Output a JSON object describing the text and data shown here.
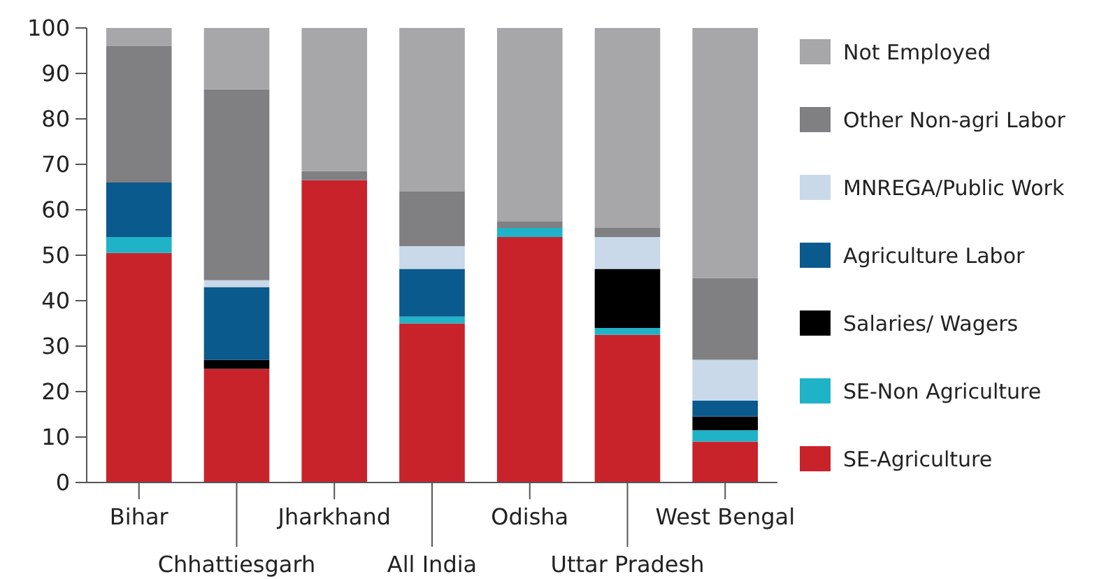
{
  "chart_data": {
    "type": "bar",
    "stacked": true,
    "categories": [
      "Bihar",
      "Chhattiesgarh",
      "Jharkhand",
      "All India",
      "Odisha",
      "Uttar Pradesh",
      "West Bengal"
    ],
    "series": [
      {
        "name": "SE-Agriculture",
        "color": "#c8232b",
        "values": [
          50.5,
          25,
          66.5,
          35,
          54,
          32.5,
          9
        ]
      },
      {
        "name": "SE-Non Agriculture",
        "color": "#1fb3c8",
        "values": [
          3.5,
          0,
          0,
          1.5,
          2,
          1.5,
          2.5
        ]
      },
      {
        "name": "Salaries/ Wagers",
        "color": "#000000",
        "values": [
          0,
          2,
          0,
          0,
          0,
          13,
          3
        ]
      },
      {
        "name": "Agriculture Labor",
        "color": "#0b5a8e",
        "values": [
          12,
          16,
          0,
          10.5,
          0,
          0,
          3.5
        ]
      },
      {
        "name": "MNREGA/Public Work",
        "color": "#c9d9ea",
        "values": [
          0,
          1.5,
          0,
          5,
          0,
          7,
          9
        ]
      },
      {
        "name": "Other Non-agri Labor",
        "color": "#808083",
        "values": [
          30,
          42,
          2,
          12,
          1.5,
          2,
          18
        ]
      },
      {
        "name": "Not Employed",
        "color": "#a7a7aa",
        "values": [
          4,
          13.5,
          31.5,
          36,
          42.5,
          44,
          55
        ]
      }
    ],
    "ylim": [
      0,
      100
    ],
    "yticks": [
      0,
      10,
      20,
      30,
      40,
      50,
      60,
      70,
      80,
      90,
      100
    ],
    "grid": false,
    "legend": "right"
  }
}
